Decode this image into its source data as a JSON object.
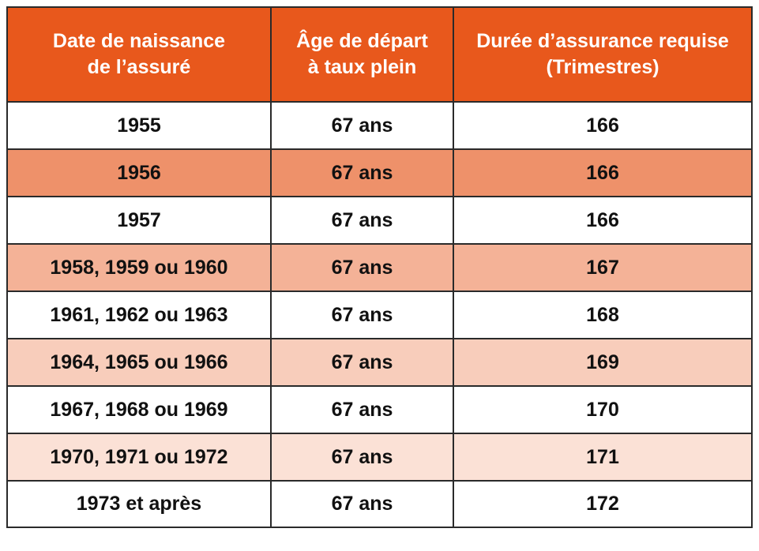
{
  "table": {
    "headers": [
      [
        "Date de naissance",
        "de l’assuré"
      ],
      [
        "Âge de départ",
        "à taux plein"
      ],
      [
        "Durée d’assurance requise",
        "(Trimestres)"
      ]
    ],
    "rows": [
      {
        "birth": "1955",
        "age": "67 ans",
        "quarters": "166",
        "bg": "#ffffff"
      },
      {
        "birth": "1956",
        "age": "67 ans",
        "quarters": "166",
        "bg": "#ee916a"
      },
      {
        "birth": "1957",
        "age": "67 ans",
        "quarters": "166",
        "bg": "#ffffff"
      },
      {
        "birth": "1958, 1959 ou 1960",
        "age": "67 ans",
        "quarters": "167",
        "bg": "#f4b297"
      },
      {
        "birth": "1961, 1962 ou 1963",
        "age": "67 ans",
        "quarters": "168",
        "bg": "#ffffff"
      },
      {
        "birth": "1964, 1965 ou 1966",
        "age": "67 ans",
        "quarters": "169",
        "bg": "#f8cdbb"
      },
      {
        "birth": "1967, 1968 ou 1969",
        "age": "67 ans",
        "quarters": "170",
        "bg": "#ffffff"
      },
      {
        "birth": "1970, 1971 ou 1972",
        "age": "67 ans",
        "quarters": "171",
        "bg": "#fbe1d6"
      },
      {
        "birth": "1973 et après",
        "age": "67 ans",
        "quarters": "172",
        "bg": "#ffffff"
      }
    ]
  },
  "colors": {
    "header_bg": "#e8581c",
    "header_text": "#ffffff",
    "border": "#2a2a2a",
    "body_text": "#111111"
  }
}
